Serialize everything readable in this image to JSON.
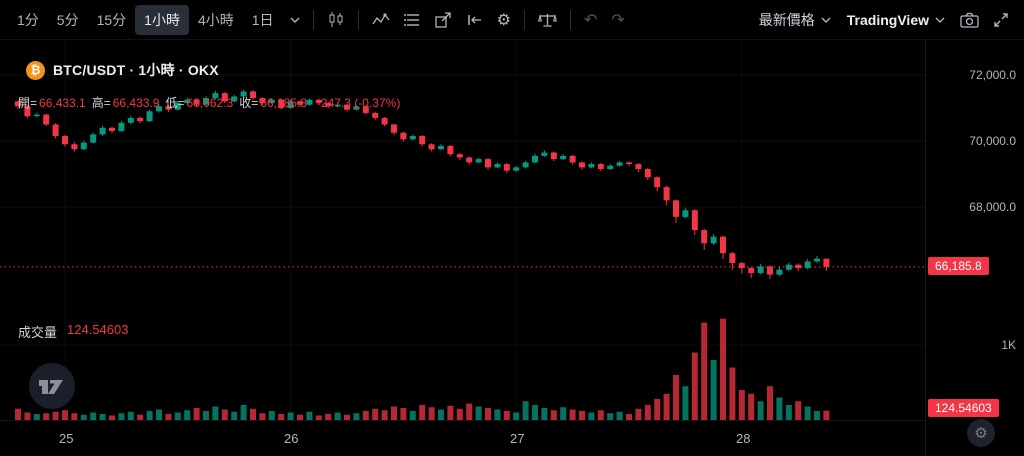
{
  "colors": {
    "bg": "#000000",
    "up": "#089981",
    "down": "#f23645",
    "text": "#d1d4dc",
    "muted": "#b2b5be",
    "disabled": "#4c525e",
    "selected_bg": "#2a2e39",
    "btc_orange": "#f7931a"
  },
  "toolbar": {
    "intervals": [
      "1分",
      "5分",
      "15分",
      "1小時",
      "4小時",
      "1日"
    ],
    "selected_interval": "1小時",
    "undo": "↶",
    "redo": "↷",
    "gear": "⚙",
    "last_price_label": "最新價格",
    "brand": "TradingView"
  },
  "legend": {
    "btc_glyph": "₿",
    "symbol_title": "BTC/USDT · 1小時 · OKX",
    "open_label": "開=",
    "open": "66,433.1",
    "high_label": "高=",
    "high": "66,433.9",
    "low_label": "低=",
    "low": "66,062.3",
    "close_label": "收=",
    "close": "66,185.8",
    "change": "-247.3 (-0.37%)"
  },
  "volume_legend": {
    "label": "成交量",
    "value": "124.54603"
  },
  "price_axis": {
    "labels": [
      "72,000.0",
      "70,000.0",
      "68,000.0"
    ],
    "last_price_badge": "66,185.8",
    "volume_axis_label": "1K",
    "volume_badge": "124.54603"
  },
  "time_axis": {
    "labels": [
      "25",
      "26",
      "27",
      "28"
    ]
  },
  "corner": {
    "gear": "⚙"
  },
  "chart_data": {
    "type": "candlestick+volume",
    "title": "BTC/USDT · 1小時 · OKX",
    "exchange": "OKX",
    "interval": "1小時",
    "axis_price_levels": [
      72000,
      70000,
      68000
    ],
    "price_top_at_chart_top": 73060,
    "last_price": 66185.8,
    "volume_axis_level": 1000,
    "last_volume": 124.54603,
    "day_tick_indices": [
      5,
      29,
      53,
      77
    ],
    "candles": [
      [
        71200,
        71230,
        70980,
        71050
      ],
      [
        71050,
        71090,
        70700,
        70750
      ],
      [
        70750,
        70860,
        70720,
        70800
      ],
      [
        70800,
        70830,
        70450,
        70500
      ],
      [
        70500,
        70540,
        70080,
        70150
      ],
      [
        70150,
        70180,
        69820,
        69900
      ],
      [
        69900,
        69960,
        69680,
        69750
      ],
      [
        69750,
        70010,
        69720,
        69950
      ],
      [
        69950,
        70260,
        69920,
        70200
      ],
      [
        70200,
        70460,
        70150,
        70400
      ],
      [
        70400,
        70440,
        70230,
        70300
      ],
      [
        70300,
        70610,
        70280,
        70550
      ],
      [
        70550,
        70760,
        70500,
        70700
      ],
      [
        70700,
        70740,
        70540,
        70600
      ],
      [
        70600,
        70950,
        70570,
        70900
      ],
      [
        70900,
        71110,
        70860,
        71050
      ],
      [
        71050,
        71090,
        70880,
        70950
      ],
      [
        70950,
        71200,
        70920,
        71150
      ],
      [
        71150,
        71320,
        71100,
        71250
      ],
      [
        71250,
        71280,
        71040,
        71100
      ],
      [
        71100,
        71360,
        71070,
        71300
      ],
      [
        71300,
        71520,
        71270,
        71450
      ],
      [
        71450,
        71480,
        71150,
        71200
      ],
      [
        71200,
        71400,
        71170,
        71350
      ],
      [
        71350,
        71560,
        71320,
        71500
      ],
      [
        71500,
        71540,
        71250,
        71300
      ],
      [
        71300,
        71330,
        71090,
        71150
      ],
      [
        71150,
        71300,
        71120,
        71250
      ],
      [
        71250,
        71280,
        70950,
        71000
      ],
      [
        71000,
        71250,
        70970,
        71200
      ],
      [
        71200,
        71230,
        71050,
        71100
      ],
      [
        71100,
        71290,
        71070,
        71250
      ],
      [
        71250,
        71280,
        71100,
        71150
      ],
      [
        71150,
        71180,
        71000,
        71050
      ],
      [
        71050,
        71150,
        71010,
        71100
      ],
      [
        71100,
        71130,
        70900,
        70950
      ],
      [
        70950,
        71090,
        70920,
        71050
      ],
      [
        71050,
        71080,
        70800,
        70850
      ],
      [
        70850,
        70880,
        70640,
        70700
      ],
      [
        70700,
        70730,
        70440,
        70500
      ],
      [
        70500,
        70530,
        70180,
        70250
      ],
      [
        70250,
        70280,
        69980,
        70050
      ],
      [
        70050,
        70200,
        70020,
        70150
      ],
      [
        70150,
        70180,
        69840,
        69900
      ],
      [
        69900,
        69930,
        69690,
        69750
      ],
      [
        69750,
        69900,
        69720,
        69850
      ],
      [
        69850,
        69880,
        69540,
        69600
      ],
      [
        69600,
        69630,
        69430,
        69500
      ],
      [
        69500,
        69530,
        69280,
        69350
      ],
      [
        69350,
        69500,
        69320,
        69450
      ],
      [
        69450,
        69480,
        69130,
        69200
      ],
      [
        69200,
        69350,
        69170,
        69300
      ],
      [
        69300,
        69330,
        69020,
        69100
      ],
      [
        69100,
        69250,
        69070,
        69200
      ],
      [
        69200,
        69400,
        69170,
        69350
      ],
      [
        69350,
        69620,
        69320,
        69550
      ],
      [
        69550,
        69720,
        69520,
        69650
      ],
      [
        69650,
        69680,
        69390,
        69450
      ],
      [
        69450,
        69600,
        69420,
        69550
      ],
      [
        69550,
        69580,
        69290,
        69350
      ],
      [
        69350,
        69380,
        69130,
        69200
      ],
      [
        69200,
        69350,
        69170,
        69300
      ],
      [
        69300,
        69330,
        69090,
        69150
      ],
      [
        69150,
        69300,
        69120,
        69250
      ],
      [
        69250,
        69400,
        69220,
        69350
      ],
      [
        69350,
        69380,
        69230,
        69300
      ],
      [
        69300,
        69330,
        69050,
        69150
      ],
      [
        69150,
        69180,
        68820,
        68900
      ],
      [
        68900,
        68930,
        68480,
        68600
      ],
      [
        68600,
        68640,
        68050,
        68200
      ],
      [
        68200,
        68230,
        67520,
        67700
      ],
      [
        67700,
        67980,
        67650,
        67900
      ],
      [
        67900,
        67930,
        67150,
        67300
      ],
      [
        67300,
        67340,
        66700,
        66900
      ],
      [
        66900,
        67180,
        66850,
        67100
      ],
      [
        67100,
        67130,
        66420,
        66600
      ],
      [
        66600,
        66640,
        66100,
        66300
      ],
      [
        66300,
        66340,
        65980,
        66150
      ],
      [
        66150,
        66180,
        65850,
        66000
      ],
      [
        66000,
        66280,
        65960,
        66200
      ],
      [
        66200,
        66230,
        65820,
        65950
      ],
      [
        65950,
        66180,
        65900,
        66100
      ],
      [
        66100,
        66320,
        66060,
        66250
      ],
      [
        66250,
        66290,
        66050,
        66150
      ],
      [
        66150,
        66420,
        66110,
        66350
      ],
      [
        66350,
        66520,
        66300,
        66433.1
      ],
      [
        66433.1,
        66433.9,
        66062.3,
        66185.8
      ]
    ],
    "volumes": [
      150,
      100,
      80,
      90,
      110,
      130,
      90,
      70,
      100,
      80,
      60,
      90,
      110,
      70,
      120,
      140,
      80,
      100,
      130,
      160,
      120,
      180,
      140,
      110,
      200,
      150,
      90,
      120,
      80,
      100,
      70,
      110,
      60,
      80,
      100,
      70,
      90,
      120,
      150,
      130,
      180,
      160,
      120,
      200,
      170,
      140,
      190,
      150,
      220,
      180,
      160,
      140,
      120,
      100,
      250,
      200,
      160,
      130,
      170,
      140,
      120,
      100,
      130,
      90,
      110,
      80,
      150,
      200,
      280,
      350,
      600,
      450,
      900,
      1300,
      800,
      1350,
      700,
      400,
      350,
      250,
      450,
      300,
      200,
      250,
      180,
      120,
      124.54603
    ]
  }
}
